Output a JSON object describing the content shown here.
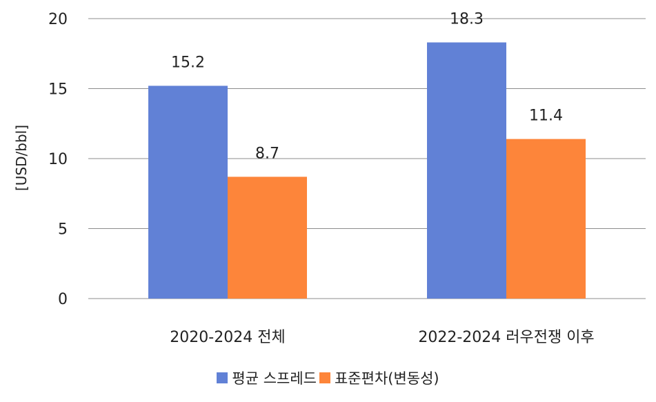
{
  "chart_data": {
    "type": "bar",
    "categories": [
      "2020-2024 전체",
      "2022-2024 러우전쟁 이후"
    ],
    "series": [
      {
        "name": "평균 스프레드",
        "values": [
          15.2,
          18.3
        ],
        "color": "#6181d6"
      },
      {
        "name": "표준편차(변동성)",
        "values": [
          8.7,
          11.4
        ],
        "color": "#fd853a"
      }
    ],
    "data_labels": [
      [
        "15.2",
        "18.3"
      ],
      [
        "8.7",
        "11.4"
      ]
    ],
    "ylabel": "[USD/bbl]",
    "yticks": [
      "0",
      "5",
      "10",
      "15",
      "20"
    ],
    "ylim": [
      0,
      20
    ],
    "grid": true,
    "legend_position": "bottom"
  }
}
